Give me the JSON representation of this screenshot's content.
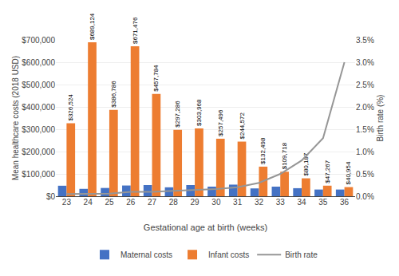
{
  "chart_data": {
    "type": "bar",
    "x_label": "Gestational age at birth (weeks)",
    "y_label": "Mean healthcare costs (2018 USD)",
    "y2_label": "Birth rate (%)",
    "categories": [
      "23",
      "24",
      "25",
      "26",
      "27",
      "28",
      "29",
      "30",
      "31",
      "32",
      "33",
      "34",
      "35",
      "36"
    ],
    "series": [
      {
        "name": "Maternal costs",
        "color": "#4472c4",
        "values": [
          47000,
          33000,
          37000,
          48000,
          50000,
          40000,
          50000,
          43000,
          52000,
          35000,
          43000,
          36000,
          30000,
          30000
        ]
      },
      {
        "name": "Infant costs",
        "color": "#ed7d31",
        "data_labels": true,
        "values": [
          326524,
          689124,
          386786,
          671476,
          457784,
          297286,
          303968,
          257496,
          244572,
          132498,
          109718,
          80187,
          47267,
          40954
        ],
        "value_labels": [
          "$326,524",
          "$689,124",
          "$386,786",
          "$671,476",
          "$457,784",
          "$297,286",
          "$303,968",
          "$257,496",
          "$244,572",
          "$132,498",
          "$109,718",
          "$80,187",
          "$47,267",
          "$40,954"
        ]
      },
      {
        "name": "Birth rate",
        "type": "line",
        "axis": "y2",
        "color": "#969696",
        "values": [
          0.0005,
          0.0005,
          0.0006,
          0.001,
          0.001,
          0.0012,
          0.0014,
          0.0016,
          0.002,
          0.003,
          0.005,
          0.008,
          0.013,
          0.03
        ]
      }
    ],
    "ylim": [
      0,
      700000
    ],
    "yticks": [
      {
        "value": 0,
        "label": "$0"
      },
      {
        "value": 100000,
        "label": "$100,000"
      },
      {
        "value": 200000,
        "label": "$200,000"
      },
      {
        "value": 300000,
        "label": "$300,000"
      },
      {
        "value": 400000,
        "label": "$400,000"
      },
      {
        "value": 500000,
        "label": "$500,000"
      },
      {
        "value": 600000,
        "label": "$600,000"
      },
      {
        "value": 700000,
        "label": "$700,000"
      }
    ],
    "y2lim": [
      0,
      0.035
    ],
    "y2ticks": [
      {
        "value": 0.0,
        "label": "0.0%"
      },
      {
        "value": 0.005,
        "label": "0.5%"
      },
      {
        "value": 0.01,
        "label": "1.0%"
      },
      {
        "value": 0.015,
        "label": "1.5%"
      },
      {
        "value": 0.02,
        "label": "2.0%"
      },
      {
        "value": 0.025,
        "label": "2.5%"
      },
      {
        "value": 0.03,
        "label": "3.0%"
      },
      {
        "value": 0.035,
        "label": "3.5%"
      }
    ],
    "grid": true,
    "legend": "bottom"
  }
}
